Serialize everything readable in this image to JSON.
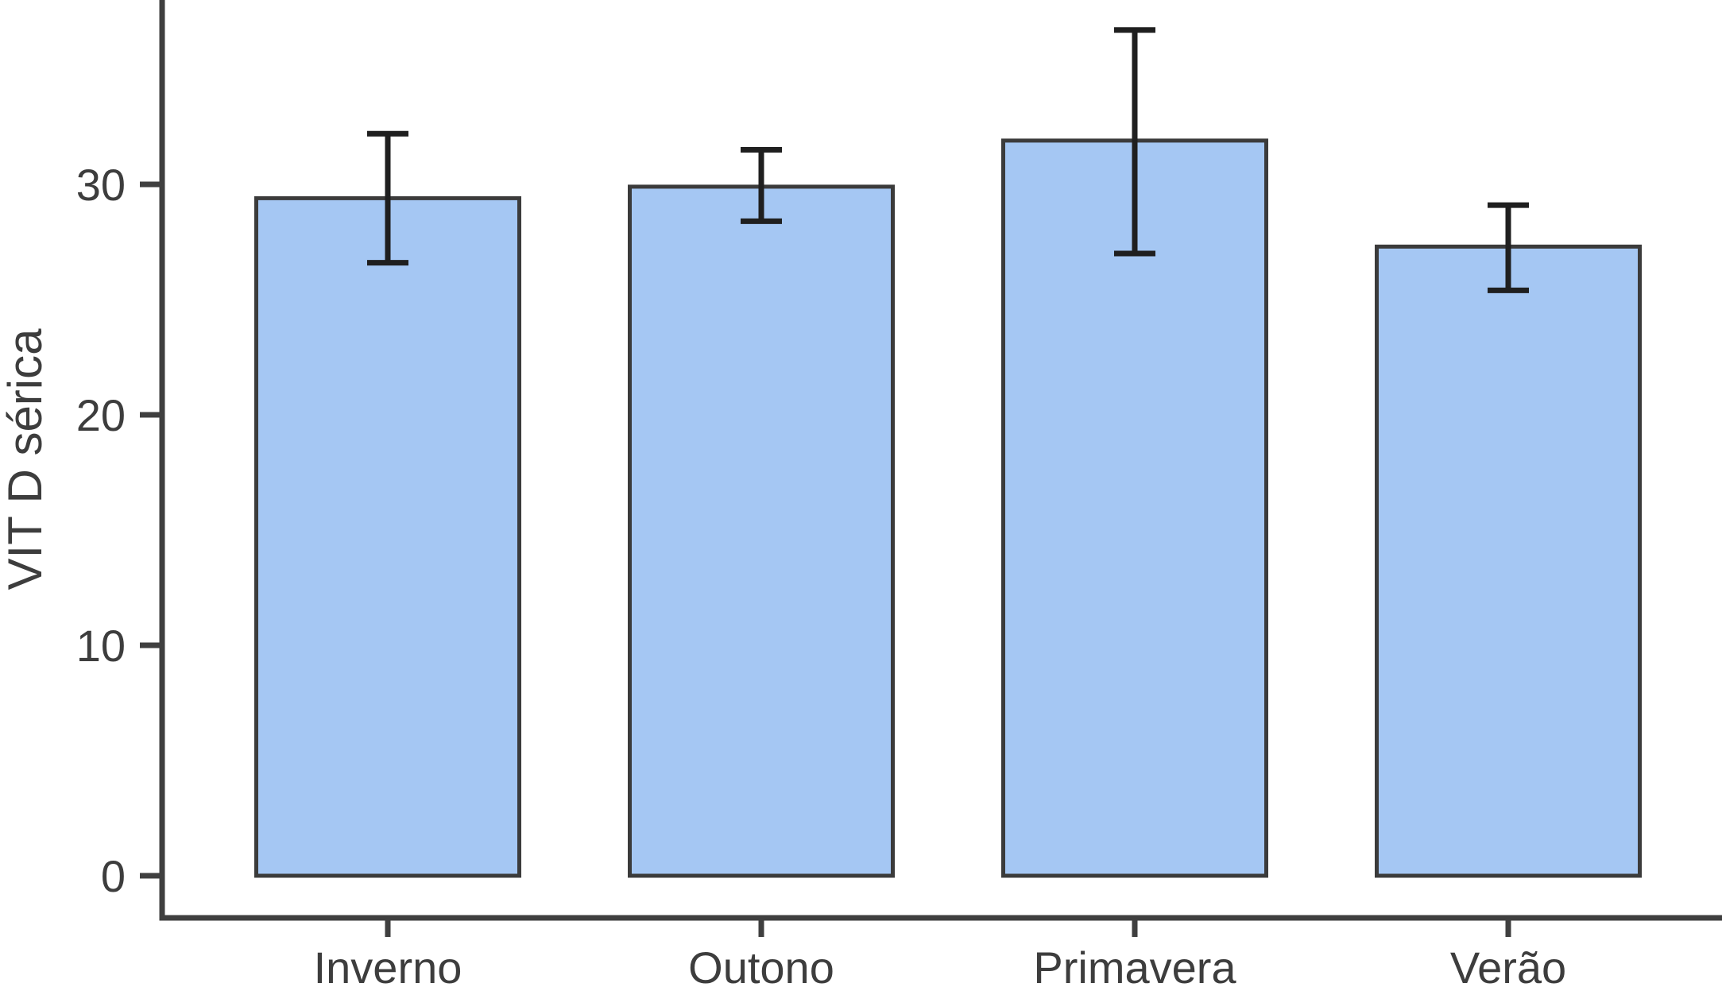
{
  "chart_data": {
    "type": "bar",
    "title": "",
    "categories": [
      "Inverno",
      "Outono",
      "Primavera",
      "Verão"
    ],
    "series": [
      {
        "name": "VIT D sérica",
        "values": [
          29.4,
          29.9,
          31.9,
          27.3
        ]
      }
    ],
    "error_bars": {
      "upper": [
        32.2,
        31.5,
        36.7,
        29.1
      ],
      "lower": [
        26.6,
        28.4,
        27.0,
        25.4
      ]
    },
    "xlabel": "",
    "ylabel": "VIT D sérica",
    "y_ticks": [
      0,
      10,
      20,
      30
    ],
    "ylim": [
      0,
      38
    ],
    "grid": false,
    "legend_position": "none",
    "colors": {
      "bar_fill": "#a5c7f3",
      "bar_border": "#3b3b3b",
      "error_bar": "#1f1f1f",
      "axis": "#3f3f3f",
      "text": "#3d3d3d",
      "background": "#ffffff"
    }
  }
}
